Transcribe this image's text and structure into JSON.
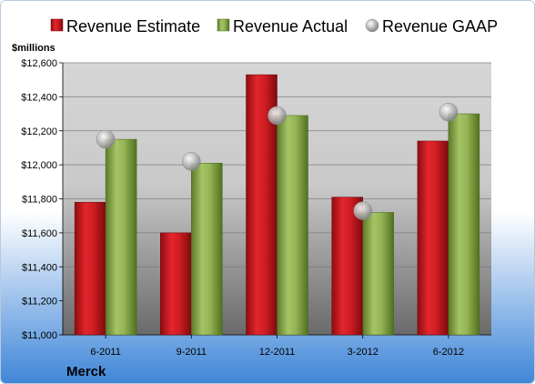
{
  "company": "Merck",
  "unit_label": "$millions",
  "colors": {
    "estimate": "#c8161d",
    "actual": "#8aaa49",
    "gaap": "#9a9a9a",
    "plot_top": "#d6d6d6",
    "plot_bottom": "#6a6a6a",
    "bg_bottom": "#3d85d8"
  },
  "chart_data": {
    "type": "bar",
    "categories": [
      "6-2011",
      "9-2011",
      "12-2011",
      "3-2012",
      "6-2012"
    ],
    "series": [
      {
        "name": "Revenue Estimate",
        "kind": "bar",
        "values": [
          11780,
          11600,
          12530,
          11810,
          12140
        ]
      },
      {
        "name": "Revenue Actual",
        "kind": "bar",
        "values": [
          12150,
          12010,
          12290,
          11720,
          12300
        ]
      },
      {
        "name": "Revenue GAAP",
        "kind": "marker",
        "values": [
          12150,
          12020,
          12290,
          11730,
          12310
        ]
      }
    ],
    "ylim": [
      11000,
      12600
    ],
    "yticks": [
      11000,
      11200,
      11400,
      11600,
      11800,
      12000,
      12200,
      12400,
      12600
    ],
    "ytick_labels": [
      "$11,000",
      "$11,200",
      "$11,400",
      "$11,600",
      "$11,800",
      "$12,000",
      "$12,200",
      "$12,400",
      "$12,600"
    ],
    "grid": true,
    "legend": "top"
  }
}
